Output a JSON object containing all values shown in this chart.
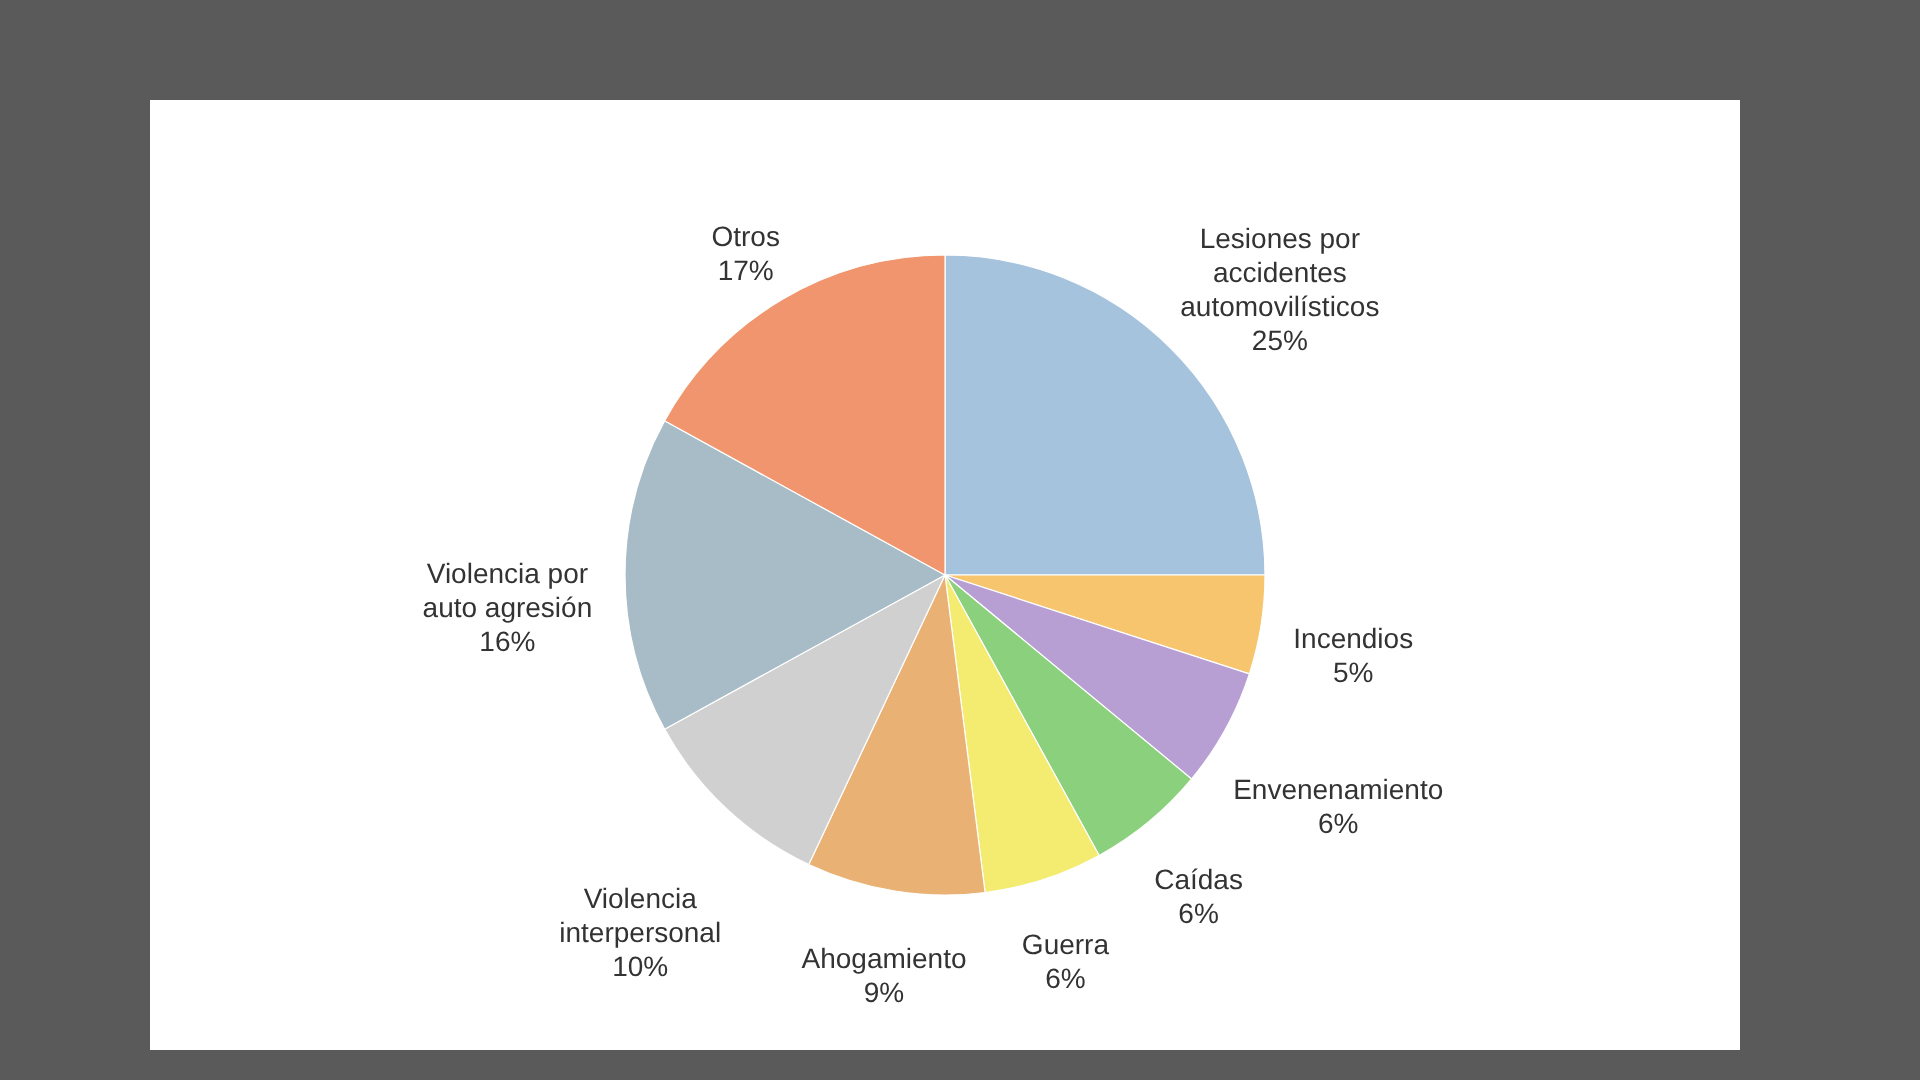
{
  "chart_data": {
    "type": "pie",
    "categories": [
      "Lesiones por accidentes automovilísticos",
      "Incendios",
      "Envenenamiento",
      "Caídas",
      "Guerra",
      "Ahogamiento",
      "Violencia interpersonal",
      "Violencia por auto agresión",
      "Otros"
    ],
    "values": [
      25,
      5,
      6,
      6,
      6,
      9,
      10,
      16,
      17
    ],
    "colors": [
      "#a6c3de",
      "#f6c56e",
      "#b89fd3",
      "#8bd07c",
      "#f3ec70",
      "#e9b173",
      "#d0d0d0",
      "#a8bcc7",
      "#f1956e"
    ],
    "value_labels": [
      "25%",
      "5%",
      "6%",
      "6%",
      "6%",
      "9%",
      "10%",
      "16%",
      "17%"
    ]
  }
}
